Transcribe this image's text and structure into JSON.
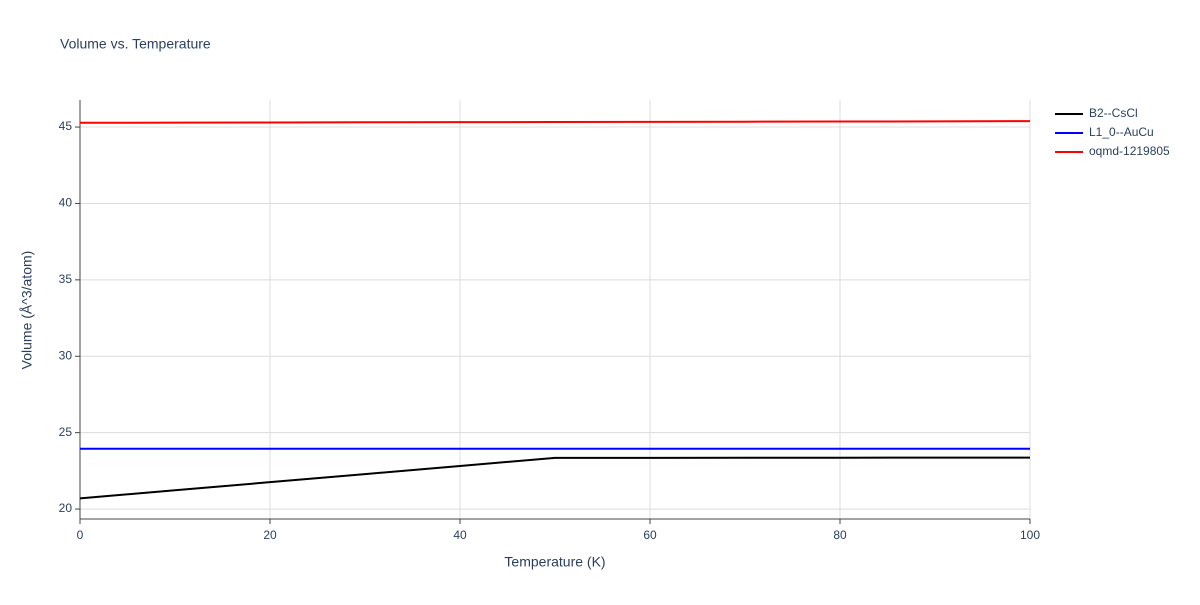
{
  "chart_data": {
    "type": "line",
    "title": "Volume vs. Temperature",
    "x_label": "Temperature (K)",
    "y_label": "Volume (Å^3/atom)",
    "x": [
      0,
      10,
      20,
      30,
      40,
      50,
      60,
      70,
      80,
      90,
      100
    ],
    "series": [
      {
        "name": "B2--CsCl",
        "color": "#000000",
        "values": [
          20.7,
          21.23,
          21.76,
          22.29,
          22.82,
          23.35,
          23.35,
          23.36,
          23.36,
          23.37,
          23.37
        ]
      },
      {
        "name": "L1_0--AuCu",
        "color": "#0000ff",
        "values": [
          23.95,
          23.95,
          23.95,
          23.95,
          23.95,
          23.95,
          23.95,
          23.95,
          23.95,
          23.95,
          23.95
        ]
      },
      {
        "name": "oqmd-1219805",
        "color": "#ff0000",
        "values": [
          45.28,
          45.29,
          45.3,
          45.31,
          45.32,
          45.33,
          45.34,
          45.35,
          45.36,
          45.37,
          45.39
        ]
      }
    ],
    "xlim": [
      0,
      100
    ],
    "xticks": [
      0,
      20,
      40,
      60,
      80,
      100
    ],
    "ylim": [
      19.35,
      46.77
    ],
    "yticks": [
      20,
      25,
      30,
      35,
      40,
      45
    ],
    "grid": true,
    "legend": "right"
  }
}
